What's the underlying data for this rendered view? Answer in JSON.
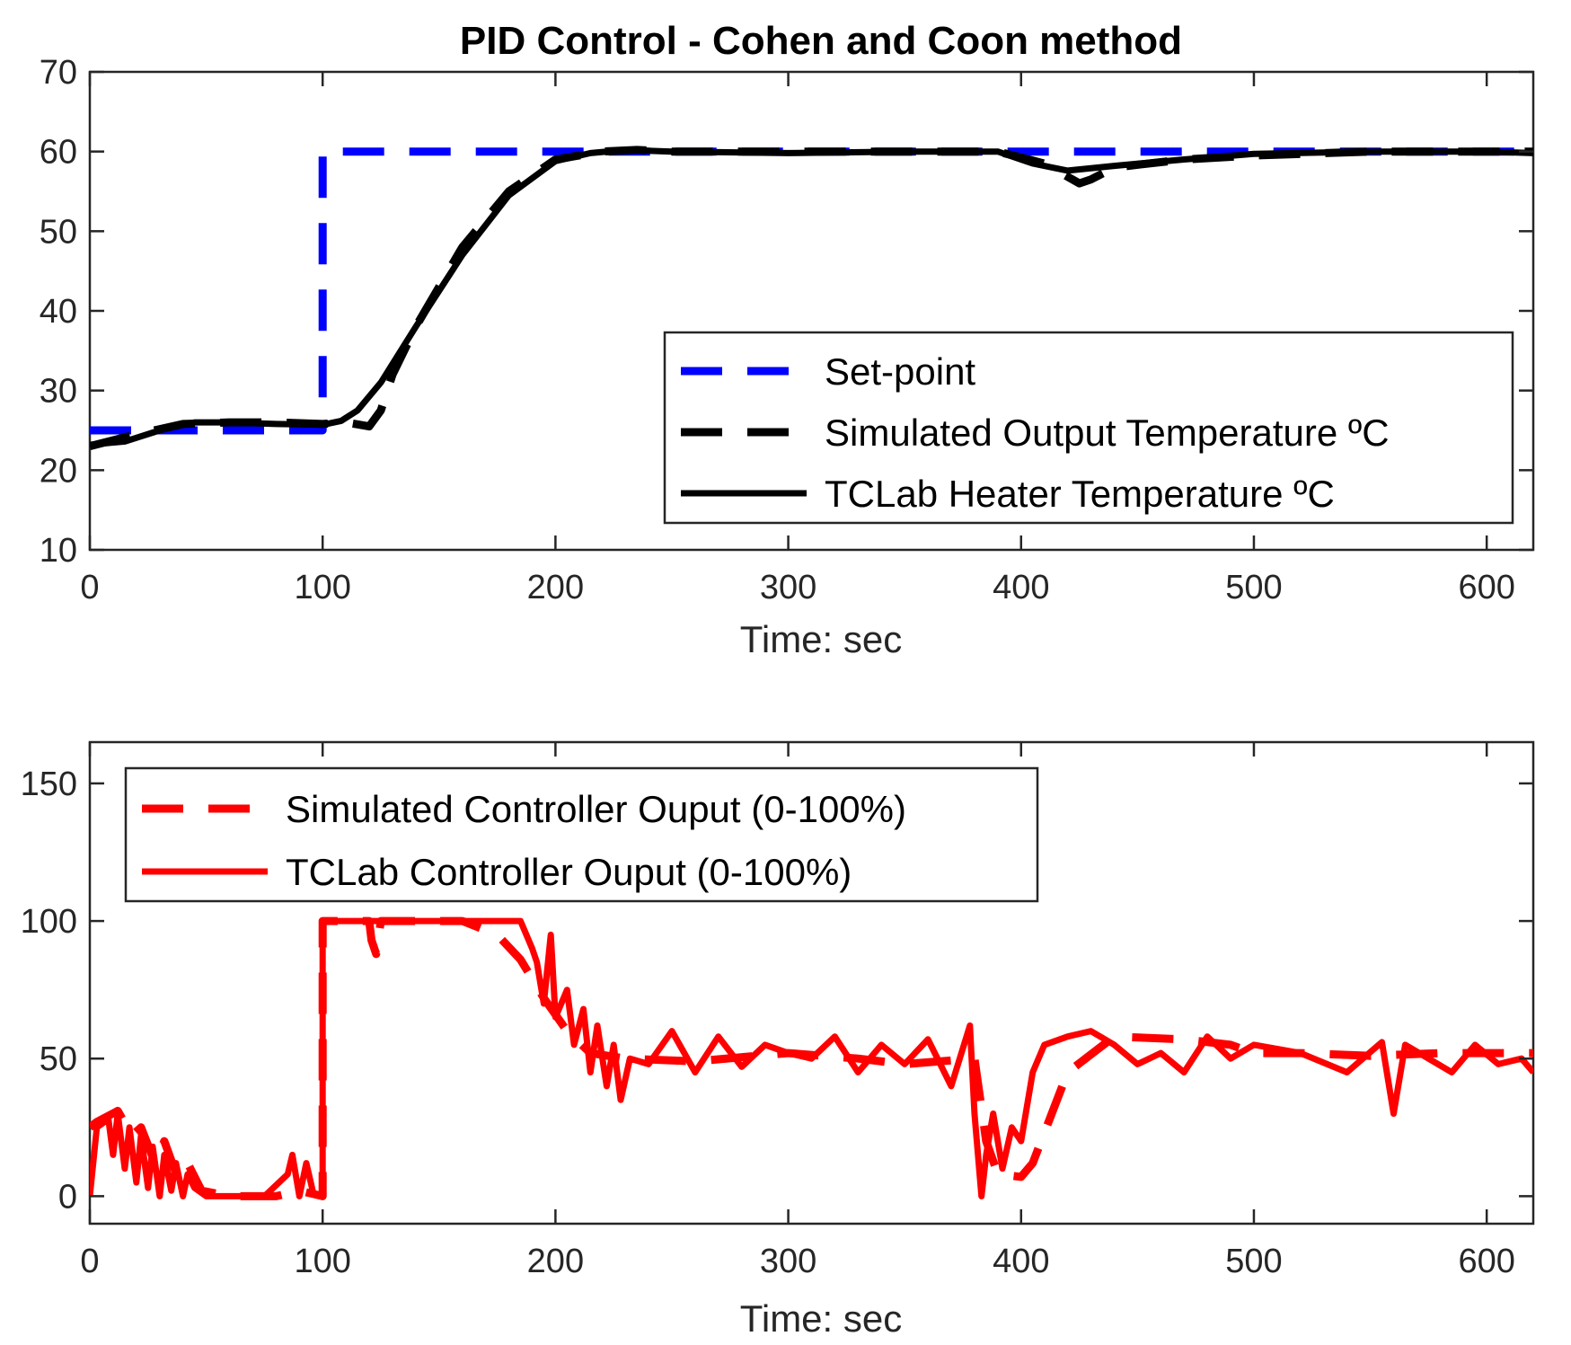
{
  "chart_data": [
    {
      "type": "line",
      "title": "PID Control - Cohen and Coon method",
      "xlabel": "Time: sec",
      "ylabel": "",
      "xlim": [
        0,
        620
      ],
      "ylim": [
        10,
        70
      ],
      "xticks": [
        0,
        100,
        200,
        300,
        400,
        500,
        600
      ],
      "yticks": [
        10,
        20,
        30,
        40,
        50,
        60,
        70
      ],
      "grid": false,
      "legend_position": "bottom-right",
      "series": [
        {
          "name": "Set-point",
          "style": "dashed",
          "color": "#0000ff",
          "x": [
            0,
            100,
            100,
            620
          ],
          "y": [
            25,
            25,
            60,
            60
          ]
        },
        {
          "name": "Simulated Output Temperature ºC",
          "style": "dashed",
          "color": "#000000",
          "x": [
            0,
            20,
            40,
            60,
            80,
            100,
            110,
            120,
            125,
            130,
            140,
            160,
            180,
            200,
            220,
            235,
            250,
            300,
            350,
            390,
            410,
            425,
            430,
            440,
            470,
            500,
            550,
            620
          ],
          "y": [
            23,
            24.5,
            25.8,
            26,
            26,
            25.8,
            26,
            25.5,
            27.5,
            32,
            38,
            48,
            55,
            59,
            60,
            60.2,
            60,
            60,
            60,
            60,
            58.5,
            56,
            56.5,
            58,
            59,
            59.5,
            60,
            60
          ]
        },
        {
          "name": "TCLab Heater Temperature ºC",
          "style": "solid",
          "color": "#000000",
          "x": [
            0,
            15,
            30,
            45,
            60,
            80,
            100,
            108,
            115,
            125,
            140,
            160,
            180,
            200,
            215,
            230,
            250,
            300,
            350,
            390,
            405,
            420,
            440,
            470,
            500,
            550,
            600,
            620
          ],
          "y": [
            23.2,
            23.6,
            25,
            26,
            26,
            25.8,
            25.7,
            26.2,
            27.5,
            31,
            38,
            47,
            54.5,
            58.8,
            59.8,
            60.2,
            60,
            59.8,
            60,
            60,
            58.5,
            57.6,
            58.2,
            59,
            59.7,
            60,
            60,
            59.8
          ]
        }
      ]
    },
    {
      "type": "line",
      "title": "",
      "xlabel": "Time: sec",
      "ylabel": "",
      "xlim": [
        0,
        620
      ],
      "ylim": [
        -10,
        165
      ],
      "xticks": [
        0,
        100,
        200,
        300,
        400,
        500,
        600
      ],
      "yticks": [
        0,
        50,
        100,
        150
      ],
      "grid": false,
      "legend_position": "top-left",
      "series": [
        {
          "name": "Simulated Controller Ouput (0-100%)",
          "style": "dashed",
          "color": "#ff0000",
          "x": [
            0,
            3,
            12,
            18,
            22,
            28,
            32,
            38,
            42,
            48,
            60,
            80,
            90,
            95,
            100,
            100,
            120,
            121,
            123,
            125,
            160,
            175,
            185,
            195,
            205,
            215,
            230,
            260,
            300,
            330,
            350,
            380,
            385,
            390,
            400,
            405,
            420,
            440,
            470,
            490,
            500,
            520,
            550,
            580,
            620
          ],
          "y": [
            25,
            27,
            31,
            22,
            25,
            12,
            20,
            6,
            12,
            2,
            0,
            0,
            2,
            1,
            0,
            100,
            100,
            93,
            88,
            100,
            100,
            95,
            86,
            72,
            60,
            52,
            50,
            49,
            52,
            50,
            48,
            50,
            20,
            8,
            7,
            12,
            45,
            58,
            57,
            55,
            52,
            52,
            51,
            52,
            52
          ]
        },
        {
          "name": "TCLab Controller Ouput (0-100%)",
          "style": "solid",
          "color": "#ff0000",
          "x": [
            0,
            3,
            8,
            10,
            12,
            15,
            17,
            20,
            22,
            25,
            27,
            30,
            32,
            35,
            37,
            40,
            42,
            45,
            50,
            60,
            75,
            85,
            87,
            90,
            93,
            96,
            100,
            100,
            185,
            190,
            192,
            195,
            198,
            200,
            205,
            208,
            212,
            215,
            218,
            222,
            225,
            228,
            232,
            240,
            250,
            260,
            270,
            280,
            290,
            300,
            310,
            320,
            330,
            340,
            350,
            360,
            370,
            378,
            380,
            383,
            385,
            388,
            392,
            396,
            400,
            405,
            410,
            420,
            430,
            440,
            450,
            460,
            470,
            480,
            490,
            500,
            520,
            540,
            555,
            560,
            565,
            575,
            585,
            595,
            605,
            615,
            620
          ],
          "y": [
            0,
            25,
            28,
            15,
            30,
            10,
            25,
            5,
            22,
            3,
            18,
            0,
            15,
            2,
            12,
            0,
            8,
            3,
            0,
            0,
            0,
            8,
            15,
            0,
            12,
            1,
            0,
            100,
            100,
            90,
            85,
            70,
            95,
            65,
            75,
            55,
            68,
            45,
            62,
            40,
            55,
            35,
            50,
            48,
            60,
            45,
            58,
            47,
            55,
            52,
            50,
            58,
            45,
            55,
            48,
            57,
            40,
            62,
            30,
            0,
            15,
            30,
            10,
            25,
            20,
            45,
            55,
            58,
            60,
            55,
            48,
            52,
            45,
            58,
            50,
            55,
            52,
            45,
            56,
            30,
            55,
            50,
            45,
            55,
            48,
            50,
            45
          ]
        }
      ]
    }
  ]
}
